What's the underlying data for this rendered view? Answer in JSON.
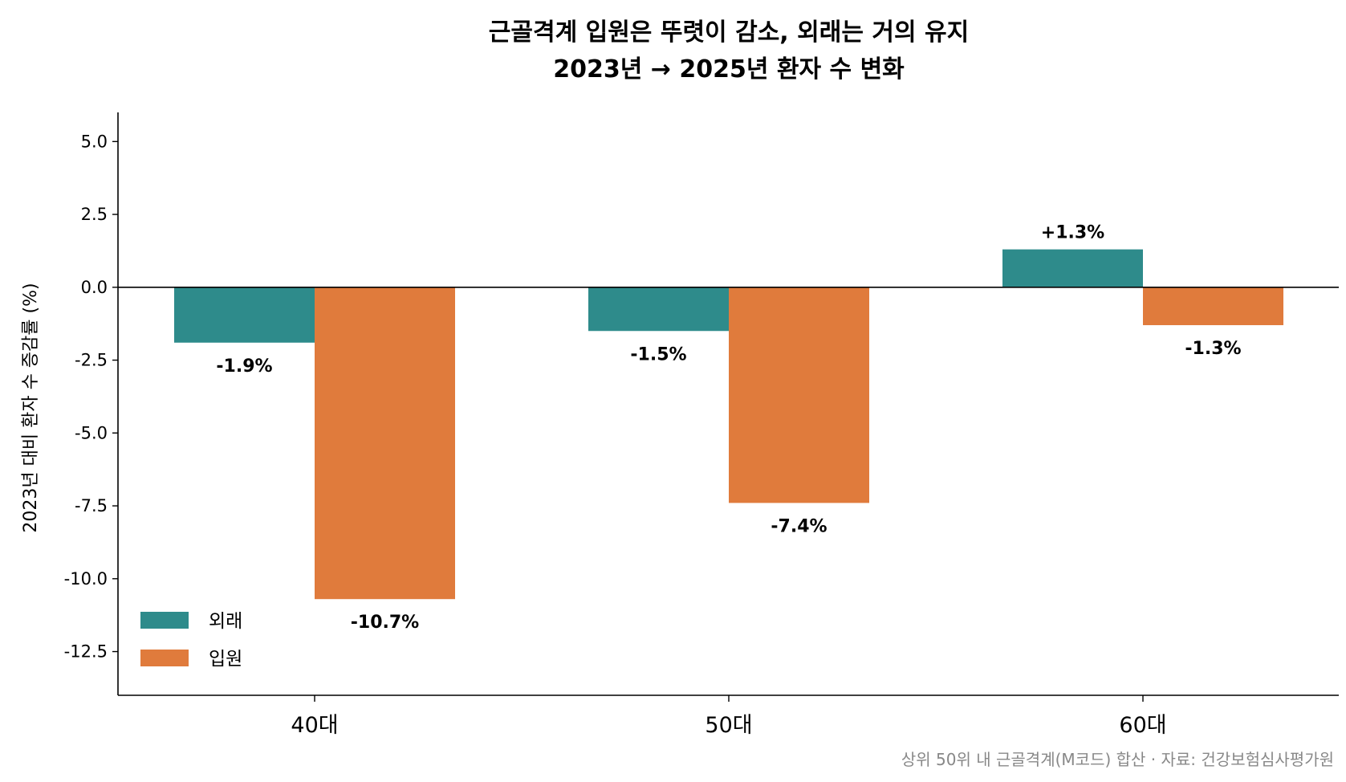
{
  "chart_data": {
    "type": "bar",
    "title_line1": "근골격계 입원은 뚜렷이 감소, 외래는 거의 유지",
    "title_line2": "2023년 → 2025년 환자 수 변화",
    "ylabel": "2023년 대비 환자 수 증감률 (%)",
    "xlabel": "",
    "categories": [
      "40대",
      "50대",
      "60대"
    ],
    "series": [
      {
        "name": "외래",
        "color": "#2e8b8b",
        "values": [
          -1.9,
          -1.5,
          1.3
        ],
        "labels": [
          "-1.9%",
          "-1.5%",
          "+1.3%"
        ]
      },
      {
        "name": "입원",
        "color": "#e07b3c",
        "values": [
          -10.7,
          -7.4,
          -1.3
        ],
        "labels": [
          "-10.7%",
          "-7.4%",
          "-1.3%"
        ]
      }
    ],
    "ylim": [
      -14.0,
      6.0
    ],
    "yticks": [
      5.0,
      2.5,
      0.0,
      -2.5,
      -5.0,
      -7.5,
      -10.0,
      -12.5
    ],
    "ytick_labels": [
      "5.0",
      "2.5",
      "0.0",
      "-2.5",
      "-5.0",
      "-7.5",
      "-10.0",
      "-12.5"
    ],
    "grid": false,
    "legend_position": "lower-left",
    "zero_line": true
  },
  "footnote": "상위 50위 내 근골격계(M코드) 합산 · 자료: 건강보험심사평가원"
}
